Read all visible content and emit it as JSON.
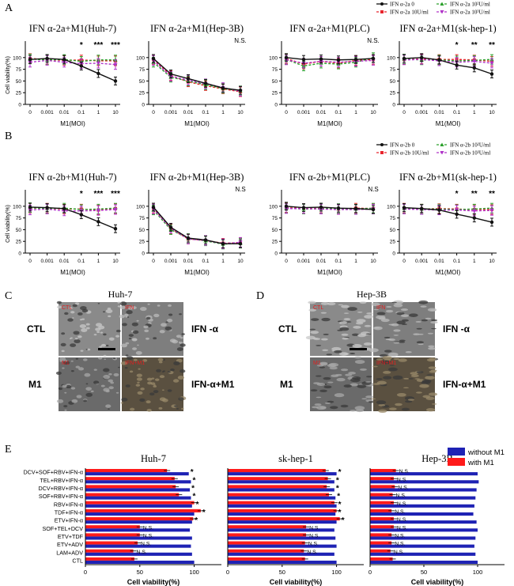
{
  "panel_letters": [
    "A",
    "B",
    "C",
    "D",
    "E"
  ],
  "micro": {
    "C": {
      "title": "Huh-7",
      "rows": [
        "CTL",
        "M1"
      ],
      "cols_right": [
        "IFN -α",
        "IFN-α+M1"
      ],
      "tiles": [
        "CTL",
        "IFN",
        "M1",
        "IFN+M1"
      ]
    },
    "D": {
      "title": "Hep-3B",
      "rows": [
        "CTL",
        "M1"
      ],
      "cols_right": [
        "IFN -α",
        "IFN-α+M1"
      ],
      "tiles": [
        "CTL",
        "IFN",
        "M1",
        "IFN+M1"
      ]
    }
  },
  "chart_data": [
    {
      "id": "A1",
      "type": "line",
      "title": "IFN α-2a+M1(Huh-7)",
      "xlabel": "M1(MOI)",
      "ylabel": "Cell viability(%)",
      "x": [
        "0",
        "0.001",
        "0.01",
        "0.1",
        "1",
        "10"
      ],
      "ylim": [
        0,
        125
      ],
      "yticks": [
        0,
        25,
        50,
        75,
        100
      ],
      "series": [
        {
          "name": "IFN α-2a 0",
          "values": [
            96,
            98,
            96,
            82,
            66,
            50
          ]
        },
        {
          "name": "IFN α-2a 10U/ml",
          "values": [
            98,
            96,
            94,
            95,
            93,
            93
          ]
        },
        {
          "name": "IFN α-2a 10²U/ml",
          "values": [
            97,
            95,
            96,
            92,
            95,
            95
          ]
        },
        {
          "name": "IFN α-2a 10³U/ml",
          "values": [
            90,
            94,
            90,
            87,
            88,
            85
          ]
        }
      ],
      "annotations": [
        {
          "x": "0.1",
          "text": "*"
        },
        {
          "x": "1",
          "text": "***"
        },
        {
          "x": "10",
          "text": "***"
        }
      ]
    },
    {
      "id": "A2",
      "type": "line",
      "title": "IFN α-2a+M1(Hep-3B)",
      "xlabel": "M1(MOI)",
      "ylabel": "",
      "x": [
        "0",
        "0.001",
        "0.01",
        "0.1",
        "1",
        "10"
      ],
      "ylim": [
        0,
        125
      ],
      "yticks": [
        0,
        25,
        50,
        75,
        100
      ],
      "series": [
        {
          "name": "IFN α-2a 0",
          "values": [
            98,
            65,
            55,
            45,
            35,
            30
          ]
        },
        {
          "name": "IFN α-2a 10U/ml",
          "values": [
            96,
            62,
            48,
            40,
            33,
            27
          ]
        },
        {
          "name": "IFN α-2a 10²U/ml",
          "values": [
            90,
            58,
            50,
            42,
            34,
            29
          ]
        },
        {
          "name": "IFN α-2a 10³U/ml",
          "values": [
            94,
            60,
            52,
            44,
            36,
            28
          ]
        }
      ],
      "annotations": [
        {
          "x": "10",
          "text": "N.S."
        }
      ]
    },
    {
      "id": "A3",
      "type": "line",
      "title": "IFN α-2a+M1(PLC)",
      "xlabel": "M1(MOI)",
      "ylabel": "",
      "x": [
        "0",
        "0.001",
        "0.01",
        "0.1",
        "1",
        "10"
      ],
      "ylim": [
        0,
        125
      ],
      "yticks": [
        0,
        25,
        50,
        75,
        100
      ],
      "series": [
        {
          "name": "IFN α-2a 0",
          "values": [
            100,
            96,
            97,
            95,
            96,
            98
          ]
        },
        {
          "name": "IFN α-2a 10U/ml",
          "values": [
            98,
            86,
            92,
            88,
            94,
            96
          ]
        },
        {
          "name": "IFN α-2a 10²U/ml",
          "values": [
            96,
            82,
            88,
            86,
            90,
            100
          ]
        },
        {
          "name": "IFN α-2a 10³U/ml",
          "values": [
            95,
            88,
            92,
            90,
            92,
            94
          ]
        }
      ],
      "annotations": [
        {
          "x": "10",
          "text": "N.S."
        }
      ]
    },
    {
      "id": "A4",
      "type": "line",
      "title": "IFN α-2a+M1(sk-hep-1)",
      "xlabel": "M1(MOI)",
      "ylabel": "",
      "x": [
        "0",
        "0.001",
        "0.01",
        "0.1",
        "1",
        "10"
      ],
      "ylim": [
        0,
        125
      ],
      "yticks": [
        0,
        25,
        50,
        75,
        100
      ],
      "series": [
        {
          "name": "IFN α-2a 0",
          "values": [
            98,
            100,
            95,
            84,
            78,
            65
          ]
        },
        {
          "name": "IFN α-2a 10U/ml",
          "values": [
            96,
            97,
            96,
            96,
            95,
            92
          ]
        },
        {
          "name": "IFN α-2a 10²U/ml",
          "values": [
            97,
            95,
            95,
            93,
            94,
            96
          ]
        },
        {
          "name": "IFN α-2a 10³U/ml",
          "values": [
            95,
            96,
            93,
            90,
            92,
            88
          ]
        }
      ],
      "annotations": [
        {
          "x": "0.1",
          "text": "*"
        },
        {
          "x": "1",
          "text": "**"
        },
        {
          "x": "10",
          "text": "**"
        }
      ]
    },
    {
      "id": "B1",
      "type": "line",
      "title": "IFN α-2b+M1(Huh-7)",
      "xlabel": "M1(MOI)",
      "ylabel": "Cell viability(%)",
      "x": [
        "0",
        "0.001",
        "0.01",
        "0.1",
        "1",
        "10"
      ],
      "ylim": [
        0,
        125
      ],
      "yticks": [
        0,
        25,
        50,
        75,
        100
      ],
      "series": [
        {
          "name": "IFN α-2b 0",
          "values": [
            98,
            97,
            95,
            82,
            67,
            52
          ]
        },
        {
          "name": "IFN α-2b 10U/ml",
          "values": [
            96,
            96,
            94,
            94,
            92,
            95
          ]
        },
        {
          "name": "IFN α-2b 10²U/ml",
          "values": [
            97,
            95,
            96,
            93,
            94,
            96
          ]
        },
        {
          "name": "IFN α-2b 10³U/ml",
          "values": [
            92,
            94,
            90,
            90,
            91,
            93
          ]
        }
      ],
      "annotations": [
        {
          "x": "0.1",
          "text": "*"
        },
        {
          "x": "1",
          "text": "***"
        },
        {
          "x": "10",
          "text": "***"
        }
      ]
    },
    {
      "id": "B2",
      "type": "line",
      "title": "IFN α-2b+M1(Hep-3B)",
      "xlabel": "M1(MOI)",
      "ylabel": "",
      "x": [
        "0",
        "0.001",
        "0.01",
        "0.1",
        "1",
        "10"
      ],
      "ylim": [
        0,
        125
      ],
      "yticks": [
        0,
        25,
        50,
        75,
        100
      ],
      "series": [
        {
          "name": "IFN α-2b 0",
          "values": [
            98,
            55,
            32,
            28,
            20,
            20
          ]
        },
        {
          "name": "IFN α-2b 10U/ml",
          "values": [
            96,
            52,
            30,
            27,
            21,
            22
          ]
        },
        {
          "name": "IFN α-2b 10²U/ml",
          "values": [
            92,
            50,
            31,
            26,
            19,
            21
          ]
        },
        {
          "name": "IFN α-2b 10³U/ml",
          "values": [
            94,
            53,
            30,
            27,
            20,
            23
          ]
        }
      ],
      "annotations": [
        {
          "x": "10",
          "text": "N.S"
        }
      ]
    },
    {
      "id": "B3",
      "type": "line",
      "title": "IFN α-2b+M1(PLC)",
      "xlabel": "M1(MOI)",
      "ylabel": "",
      "x": [
        "0",
        "0.001",
        "0.01",
        "0.1",
        "1",
        "10"
      ],
      "ylim": [
        0,
        125
      ],
      "yticks": [
        0,
        25,
        50,
        75,
        100
      ],
      "series": [
        {
          "name": "IFN α-2b 0",
          "values": [
            100,
            97,
            98,
            96,
            95,
            93
          ]
        },
        {
          "name": "IFN α-2b 10U/ml",
          "values": [
            97,
            95,
            96,
            94,
            96,
            95
          ]
        },
        {
          "name": "IFN α-2b 10²U/ml",
          "values": [
            96,
            94,
            95,
            95,
            94,
            96
          ]
        },
        {
          "name": "IFN α-2b 10³U/ml",
          "values": [
            95,
            95,
            94,
            93,
            93,
            94
          ]
        }
      ],
      "annotations": [
        {
          "x": "10",
          "text": "N.S"
        }
      ]
    },
    {
      "id": "B4",
      "type": "line",
      "title": "IFN α-2b+M1(sk-hep-1)",
      "xlabel": "M1(MOI)",
      "ylabel": "",
      "x": [
        "0",
        "0.001",
        "0.01",
        "0.1",
        "1",
        "10"
      ],
      "ylim": [
        0,
        125
      ],
      "yticks": [
        0,
        25,
        50,
        75,
        100
      ],
      "series": [
        {
          "name": "IFN α-2b 0",
          "values": [
            97,
            95,
            92,
            83,
            75,
            66
          ]
        },
        {
          "name": "IFN α-2b 10U/ml",
          "values": [
            96,
            94,
            95,
            94,
            93,
            93
          ]
        },
        {
          "name": "IFN α-2b 10²U/ml",
          "values": [
            95,
            94,
            94,
            93,
            94,
            96
          ]
        },
        {
          "name": "IFN α-2b 10³U/ml",
          "values": [
            94,
            93,
            92,
            92,
            90,
            91
          ]
        }
      ],
      "annotations": [
        {
          "x": "0.1",
          "text": "*"
        },
        {
          "x": "1",
          "text": "**"
        },
        {
          "x": "10",
          "text": "**"
        }
      ]
    },
    {
      "id": "E1",
      "type": "bar",
      "orientation": "horizontal",
      "title": "Huh-7",
      "xlabel": "Cell viability(%)",
      "categories": [
        "DCV+SOF+RBV+IFN-α",
        "TEL+RBV+IFN-α",
        "DCV+RBV+IFN-α",
        "SOF+RBV+IFN-α",
        "RBV+IFN-α",
        "TDF+IFN-α",
        "ETV+IFN-α",
        "SOF+TEL+DCV",
        "ETV+TDF",
        "ETV+ADV",
        "LAM+ADV",
        "CTL"
      ],
      "xlim": [
        0,
        125
      ],
      "xticks": [
        0,
        50,
        100
      ],
      "series": [
        {
          "name": "without M1",
          "values": [
            95,
            97,
            96,
            97,
            98,
            100,
            98,
            96,
            98,
            97,
            98,
            100
          ]
        },
        {
          "name": "with M1",
          "values": [
            75,
            82,
            83,
            86,
            100,
            106,
            99,
            50,
            50,
            48,
            44,
            45
          ]
        }
      ],
      "annotations": [
        "*",
        "*",
        "*",
        "*",
        "*",
        "*",
        "*",
        "N.S.",
        "N.S.",
        "N.S.",
        "N.S.",
        ""
      ]
    },
    {
      "id": "E2",
      "type": "bar",
      "orientation": "horizontal",
      "title": "sk-hep-1",
      "xlabel": "Cell viability(%)",
      "categories": [
        "DCV+SOF+RBV+IFN-α",
        "TEL+RBV+IFN-α",
        "DCV+RBV+IFN-α",
        "SOF+RBV+IFN-α",
        "RBV+IFN-α",
        "TDF+IFN-α",
        "ETV+IFN-α",
        "SOF+TEL+DCV",
        "ETV+TDF",
        "ETV+ADV",
        "LAM+ADV",
        "CTL"
      ],
      "xlim": [
        0,
        125
      ],
      "xticks": [
        0,
        50,
        100
      ],
      "series": [
        {
          "name": "without M1",
          "values": [
            100,
            98,
            98,
            99,
            100,
            99,
            100,
            98,
            99,
            100,
            98,
            100
          ]
        },
        {
          "name": "with M1",
          "values": [
            90,
            92,
            91,
            93,
            98,
            100,
            103,
            72,
            72,
            71,
            70,
            71
          ]
        }
      ],
      "annotations": [
        "*",
        "*",
        "*",
        "*",
        "*",
        "*",
        "*",
        "N.S.",
        "N.S.",
        "N.S.",
        "N.S.",
        ""
      ]
    },
    {
      "id": "E3",
      "type": "bar",
      "orientation": "horizontal",
      "title": "Hep-3B",
      "xlabel": "Cell viability(%)",
      "categories": [
        "DCV+SOF+RBV+IFN-α",
        "TEL+RBV+IFN-α",
        "DCV+RBV+IFN-α",
        "SOF+RBV+IFN-α",
        "RBV+IFN-α",
        "TDF+IFN-α",
        "ETV+IFN-α",
        "SOF+TEL+DCV",
        "ETV+TDF",
        "ETV+ADV",
        "LAM+ADV",
        "CTL"
      ],
      "xlim": [
        0,
        125
      ],
      "xticks": [
        0,
        50,
        100
      ],
      "series": [
        {
          "name": "without M1",
          "values": [
            100,
            101,
            99,
            98,
            97,
            96,
            99,
            100,
            98,
            97,
            98,
            100
          ]
        },
        {
          "name": "with M1",
          "values": [
            24,
            22,
            23,
            21,
            22,
            20,
            22,
            22,
            20,
            20,
            19,
            21
          ]
        }
      ],
      "annotations": [
        "N.S.",
        "N.S.",
        "N.S.",
        "N.S.",
        "N.S.",
        "N.S.",
        "N.S.",
        "N.S.",
        "N.S.",
        "N.S.",
        "N.S.",
        ""
      ]
    }
  ],
  "legend_A": [
    "IFN α-2a 0",
    "IFN α-2a 10U/ml",
    "IFN α-2a 10²U/ml",
    "IFN α-2a 10³U/ml"
  ],
  "legend_B": [
    "IFN α-2b 0",
    "IFN α-2b 10U/ml",
    "IFN α-2b 10²U/ml",
    "IFN α-2b 10³U/ml"
  ],
  "legend_E": [
    "without M1",
    "with M1"
  ],
  "colors": {
    "black": "#111111",
    "red": "#e8242c",
    "green": "#2ca02c",
    "purple": "#b033c8",
    "blue": "#1e22b4",
    "barRed": "#ff1a1a"
  }
}
